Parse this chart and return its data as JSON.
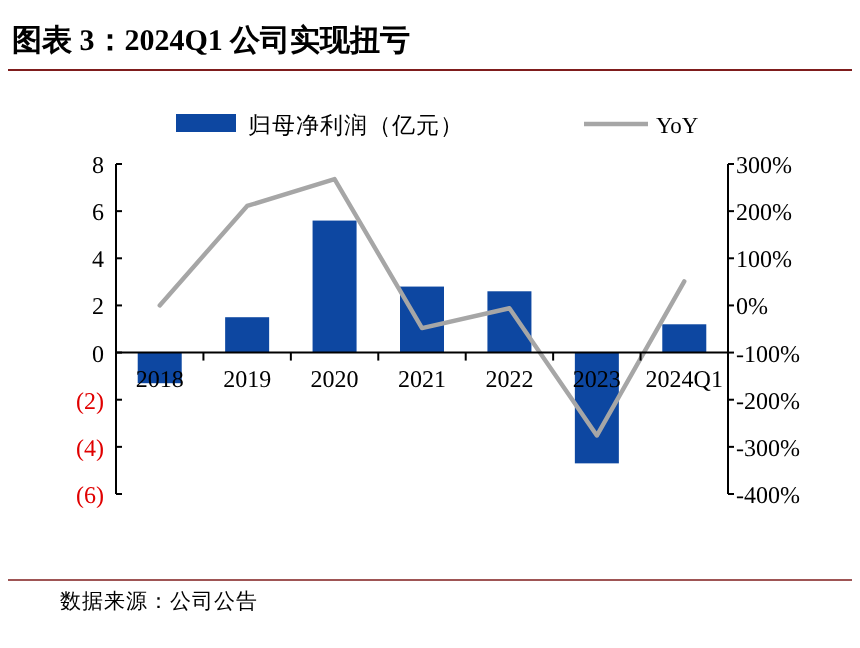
{
  "chart_data": {
    "type": "bar",
    "title": "图表 3：2024Q1 公司实现扭亏",
    "categories": [
      "2018",
      "2019",
      "2020",
      "2021",
      "2022",
      "2023",
      "2024Q1"
    ],
    "series": [
      {
        "name": "归母净利润（亿元）",
        "color": "#0d47a1",
        "values": [
          -1.3,
          1.5,
          5.6,
          2.8,
          2.6,
          -4.7,
          1.2
        ]
      },
      {
        "name": "YoY",
        "type": "line",
        "axis": "y2",
        "color": "#a6a6a6",
        "values": [
          0,
          211,
          268,
          -48,
          -6,
          -276,
          51
        ]
      }
    ],
    "ylim": [
      -6,
      8
    ],
    "yticks": [
      {
        "value": 8,
        "label": "8"
      },
      {
        "value": 6,
        "label": "6"
      },
      {
        "value": 4,
        "label": "4"
      },
      {
        "value": 2,
        "label": "2"
      },
      {
        "value": 0,
        "label": "0"
      },
      {
        "value": -2,
        "label": "(2)"
      },
      {
        "value": -4,
        "label": "(4)"
      },
      {
        "value": -6,
        "label": "(6)"
      }
    ],
    "y2lim": [
      -400,
      300
    ],
    "y2ticks": [
      {
        "value": 300,
        "label": "300%"
      },
      {
        "value": 200,
        "label": "200%"
      },
      {
        "value": 100,
        "label": "100%"
      },
      {
        "value": 0,
        "label": "0%"
      },
      {
        "value": -100,
        "label": "-100%"
      },
      {
        "value": -200,
        "label": "-200%"
      },
      {
        "value": -300,
        "label": "-300%"
      },
      {
        "value": -400,
        "label": "-400%"
      }
    ],
    "legend": "top",
    "annotations": [
      "数据来源：公司公告"
    ]
  }
}
